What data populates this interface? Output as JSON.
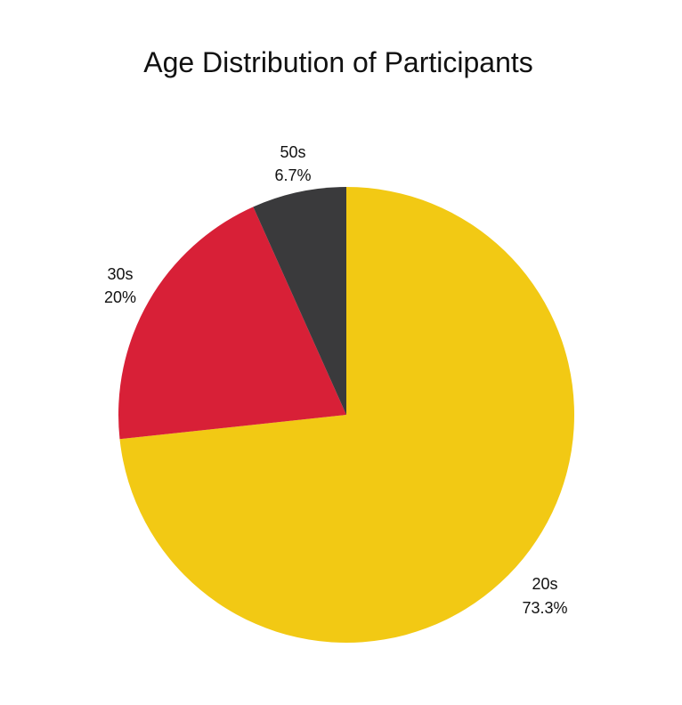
{
  "chart_data": {
    "type": "pie",
    "title": "Age Distribution of Participants",
    "slices": [
      {
        "label": "20s",
        "value": 73.3,
        "value_label": "73.3%",
        "color": "#f2c914"
      },
      {
        "label": "30s",
        "value": 20,
        "value_label": "20%",
        "color": "#d82037"
      },
      {
        "label": "50s",
        "value": 6.7,
        "value_label": "6.7%",
        "color": "#3a3a3c"
      }
    ],
    "start": "12 o'clock",
    "direction": "clockwise",
    "legend": "none",
    "labels": "outside"
  }
}
